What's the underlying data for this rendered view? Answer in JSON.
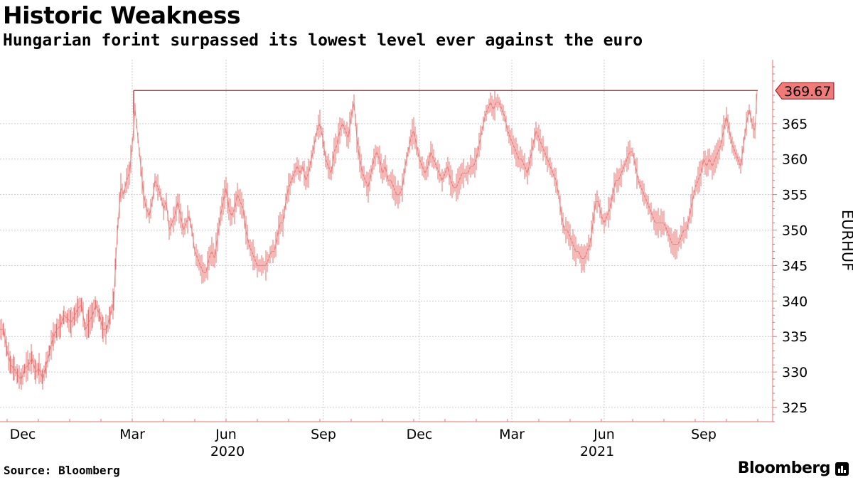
{
  "header": {
    "title": "Historic Weakness",
    "subtitle": "Hungarian forint surpassed its lowest level ever against the euro"
  },
  "footer": {
    "source": "Source: Bloomberg",
    "brand": "Bloomberg"
  },
  "colors": {
    "series": "#e8706f",
    "reference_line": "#b81c22",
    "callout_fill": "#f07a78",
    "grid": "#cccccc",
    "axis": "#e8706f"
  },
  "chart_data": {
    "type": "line",
    "ylabel": "EURHUF",
    "ylim": [
      323,
      374
    ],
    "yticks": [
      325,
      330,
      335,
      340,
      345,
      350,
      355,
      360,
      365
    ],
    "x_month_ticks": [
      "Dec",
      "Mar",
      "Jun",
      "Sep",
      "Dec",
      "Mar",
      "Jun",
      "Sep"
    ],
    "x_year_labels": [
      "2020",
      "2021"
    ],
    "grid": true,
    "legend": "none",
    "last_value_label": "369.67",
    "reference_line": 369.67,
    "series": [
      {
        "values": [
          [
            0,
            336
          ],
          [
            5,
            336
          ],
          [
            10,
            333
          ],
          [
            15,
            331
          ],
          [
            20,
            330.5
          ],
          [
            25,
            329.5
          ],
          [
            30,
            329
          ],
          [
            35,
            330.5
          ],
          [
            40,
            331
          ],
          [
            45,
            332
          ],
          [
            50,
            330
          ],
          [
            55,
            330.5
          ],
          [
            60,
            329
          ],
          [
            65,
            331
          ],
          [
            70,
            333
          ],
          [
            75,
            335
          ],
          [
            80,
            336
          ],
          [
            85,
            336.5
          ],
          [
            90,
            338
          ],
          [
            95,
            337.5
          ],
          [
            100,
            337
          ],
          [
            105,
            338
          ],
          [
            110,
            339
          ],
          [
            115,
            339.5
          ],
          [
            120,
            336
          ],
          [
            125,
            337
          ],
          [
            130,
            338
          ],
          [
            135,
            339.5
          ],
          [
            140,
            338
          ],
          [
            145,
            336
          ],
          [
            150,
            336
          ],
          [
            155,
            338
          ],
          [
            160,
            340
          ],
          [
            163,
            346
          ],
          [
            166,
            351
          ],
          [
            170,
            356
          ],
          [
            174,
            355
          ],
          [
            178,
            357
          ],
          [
            182,
            358
          ],
          [
            186,
            362
          ],
          [
            190,
            367
          ],
          [
            194,
            363
          ],
          [
            198,
            359
          ],
          [
            202,
            355
          ],
          [
            206,
            353
          ],
          [
            210,
            352
          ],
          [
            214,
            354
          ],
          [
            218,
            357
          ],
          [
            222,
            356
          ],
          [
            226,
            355
          ],
          [
            230,
            353
          ],
          [
            234,
            354
          ],
          [
            238,
            350
          ],
          [
            242,
            351
          ],
          [
            246,
            352
          ],
          [
            250,
            354
          ],
          [
            254,
            352
          ],
          [
            258,
            350
          ],
          [
            262,
            351
          ],
          [
            266,
            352
          ],
          [
            270,
            350
          ],
          [
            274,
            347
          ],
          [
            278,
            346
          ],
          [
            282,
            345
          ],
          [
            286,
            344
          ],
          [
            290,
            344
          ],
          [
            294,
            346
          ],
          [
            298,
            347
          ],
          [
            302,
            346
          ],
          [
            306,
            349
          ],
          [
            310,
            352
          ],
          [
            314,
            354
          ],
          [
            318,
            356
          ],
          [
            322,
            353
          ],
          [
            326,
            352
          ],
          [
            330,
            353
          ],
          [
            334,
            355
          ],
          [
            338,
            354
          ],
          [
            342,
            353
          ],
          [
            346,
            350
          ],
          [
            350,
            348
          ],
          [
            354,
            347
          ],
          [
            358,
            346
          ],
          [
            362,
            345
          ],
          [
            366,
            345
          ],
          [
            370,
            345
          ],
          [
            374,
            345
          ],
          [
            378,
            346
          ],
          [
            382,
            347
          ],
          [
            386,
            347
          ],
          [
            390,
            349
          ],
          [
            394,
            351
          ],
          [
            398,
            351
          ],
          [
            402,
            354
          ],
          [
            406,
            356
          ],
          [
            410,
            357
          ],
          [
            414,
            358
          ],
          [
            418,
            359
          ],
          [
            422,
            358
          ],
          [
            426,
            359
          ],
          [
            430,
            357
          ],
          [
            434,
            358
          ],
          [
            438,
            360
          ],
          [
            442,
            362
          ],
          [
            446,
            364
          ],
          [
            450,
            365
          ],
          [
            454,
            363
          ],
          [
            458,
            360
          ],
          [
            462,
            359
          ],
          [
            466,
            358
          ],
          [
            470,
            361
          ],
          [
            474,
            362
          ],
          [
            478,
            364
          ],
          [
            482,
            365
          ],
          [
            486,
            364
          ],
          [
            490,
            363
          ],
          [
            494,
            366
          ],
          [
            498,
            368
          ],
          [
            502,
            363
          ],
          [
            506,
            360
          ],
          [
            510,
            358
          ],
          [
            514,
            357
          ],
          [
            518,
            356
          ],
          [
            522,
            358
          ],
          [
            526,
            360
          ],
          [
            530,
            361
          ],
          [
            534,
            360
          ],
          [
            538,
            358
          ],
          [
            542,
            359
          ],
          [
            546,
            357
          ],
          [
            550,
            357
          ],
          [
            554,
            356
          ],
          [
            558,
            355
          ],
          [
            562,
            355
          ],
          [
            566,
            356
          ],
          [
            570,
            359
          ],
          [
            574,
            361
          ],
          [
            578,
            363
          ],
          [
            582,
            364
          ],
          [
            586,
            362
          ],
          [
            590,
            360
          ],
          [
            594,
            359
          ],
          [
            598,
            358
          ],
          [
            602,
            359
          ],
          [
            606,
            361
          ],
          [
            610,
            360
          ],
          [
            614,
            359
          ],
          [
            618,
            358
          ],
          [
            622,
            357
          ],
          [
            626,
            358
          ],
          [
            630,
            359
          ],
          [
            634,
            357
          ],
          [
            638,
            356
          ],
          [
            642,
            356
          ],
          [
            646,
            357
          ],
          [
            650,
            358
          ],
          [
            654,
            358
          ],
          [
            658,
            358
          ],
          [
            662,
            359
          ],
          [
            666,
            359
          ],
          [
            670,
            360
          ],
          [
            674,
            362
          ],
          [
            678,
            364
          ],
          [
            682,
            366
          ],
          [
            686,
            367
          ],
          [
            690,
            368
          ],
          [
            694,
            367
          ],
          [
            698,
            368
          ],
          [
            702,
            368
          ],
          [
            706,
            367
          ],
          [
            710,
            366
          ],
          [
            714,
            364
          ],
          [
            718,
            363
          ],
          [
            722,
            362
          ],
          [
            726,
            361
          ],
          [
            730,
            360
          ],
          [
            734,
            360
          ],
          [
            738,
            359
          ],
          [
            742,
            358
          ],
          [
            746,
            360
          ],
          [
            750,
            362
          ],
          [
            754,
            364
          ],
          [
            758,
            363
          ],
          [
            762,
            362
          ],
          [
            766,
            361
          ],
          [
            770,
            360
          ],
          [
            774,
            359
          ],
          [
            778,
            358
          ],
          [
            782,
            357
          ],
          [
            786,
            355
          ],
          [
            790,
            352
          ],
          [
            794,
            350
          ],
          [
            798,
            350
          ],
          [
            802,
            349
          ],
          [
            806,
            348
          ],
          [
            810,
            347
          ],
          [
            814,
            347
          ],
          [
            818,
            346
          ],
          [
            822,
            346
          ],
          [
            826,
            347
          ],
          [
            830,
            348
          ],
          [
            834,
            351
          ],
          [
            838,
            354
          ],
          [
            842,
            354
          ],
          [
            846,
            352
          ],
          [
            850,
            351
          ],
          [
            854,
            352
          ],
          [
            858,
            353
          ],
          [
            862,
            355
          ],
          [
            866,
            357
          ],
          [
            870,
            357
          ],
          [
            874,
            358
          ],
          [
            878,
            359
          ],
          [
            882,
            360
          ],
          [
            886,
            361
          ],
          [
            890,
            361
          ],
          [
            894,
            359
          ],
          [
            898,
            357
          ],
          [
            902,
            356
          ],
          [
            906,
            355
          ],
          [
            910,
            354
          ],
          [
            914,
            353
          ],
          [
            918,
            352
          ],
          [
            922,
            351
          ],
          [
            926,
            351
          ],
          [
            930,
            351
          ],
          [
            934,
            351
          ],
          [
            938,
            350
          ],
          [
            942,
            349
          ],
          [
            946,
            348
          ],
          [
            950,
            348
          ],
          [
            954,
            348
          ],
          [
            958,
            349
          ],
          [
            962,
            350
          ],
          [
            966,
            350
          ],
          [
            970,
            352
          ],
          [
            974,
            354
          ],
          [
            978,
            356
          ],
          [
            982,
            357
          ],
          [
            986,
            358
          ],
          [
            990,
            360
          ],
          [
            994,
            359
          ],
          [
            998,
            360
          ],
          [
            1002,
            359
          ],
          [
            1006,
            360
          ],
          [
            1010,
            361
          ],
          [
            1014,
            362
          ],
          [
            1018,
            364
          ],
          [
            1022,
            366
          ],
          [
            1026,
            364
          ],
          [
            1030,
            362
          ],
          [
            1034,
            361
          ],
          [
            1038,
            360
          ],
          [
            1042,
            359
          ],
          [
            1046,
            362
          ],
          [
            1050,
            365
          ],
          [
            1054,
            367
          ],
          [
            1058,
            365
          ],
          [
            1062,
            364
          ],
          [
            1065,
            369.67
          ]
        ]
      }
    ]
  }
}
